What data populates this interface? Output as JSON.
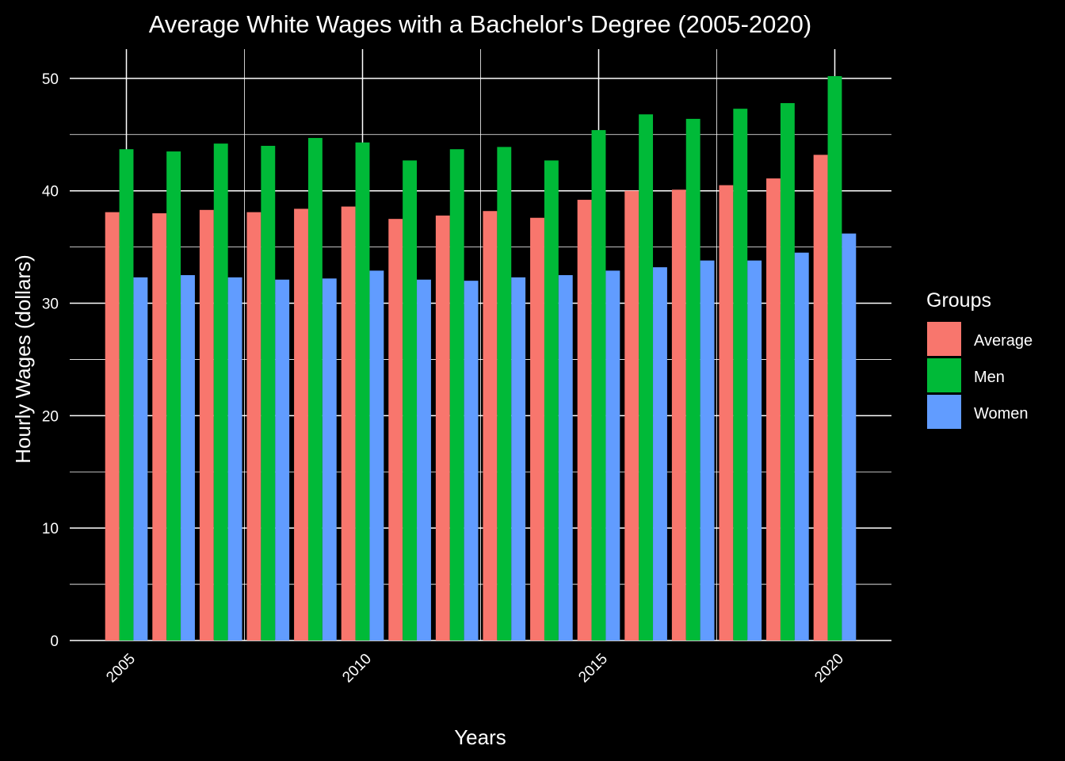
{
  "chart_data": {
    "type": "bar",
    "title": "Average White Wages with a Bachelor's Degree (2005-2020)",
    "xlabel": "Years",
    "ylabel": "Hourly Wages (dollars)",
    "x": [
      2005,
      2006,
      2007,
      2008,
      2009,
      2010,
      2011,
      2012,
      2013,
      2014,
      2015,
      2016,
      2017,
      2018,
      2019,
      2020
    ],
    "x_ticks": [
      2005,
      2010,
      2015,
      2020
    ],
    "y_ticks": [
      0,
      10,
      20,
      30,
      40,
      50
    ],
    "ylim": [
      0,
      52.6
    ],
    "xlim": [
      2003.8,
      2021.2
    ],
    "grid": true,
    "legend": {
      "title": "Groups",
      "position": "right"
    },
    "series": [
      {
        "name": "Average",
        "color": "#F8766D",
        "values": [
          38.1,
          38.0,
          38.3,
          38.1,
          38.4,
          38.6,
          37.5,
          37.8,
          38.2,
          37.6,
          39.2,
          40.0,
          40.1,
          40.5,
          41.1,
          43.2
        ]
      },
      {
        "name": "Men",
        "color": "#00BA38",
        "values": [
          43.7,
          43.5,
          44.2,
          44.0,
          44.7,
          44.3,
          42.7,
          43.7,
          43.9,
          42.7,
          45.4,
          46.8,
          46.4,
          47.3,
          47.8,
          50.2
        ]
      },
      {
        "name": "Women",
        "color": "#619CFF",
        "values": [
          32.3,
          32.5,
          32.3,
          32.1,
          32.2,
          32.9,
          32.1,
          32.0,
          32.3,
          32.5,
          32.9,
          33.2,
          33.8,
          33.8,
          34.5,
          36.2
        ]
      }
    ]
  }
}
